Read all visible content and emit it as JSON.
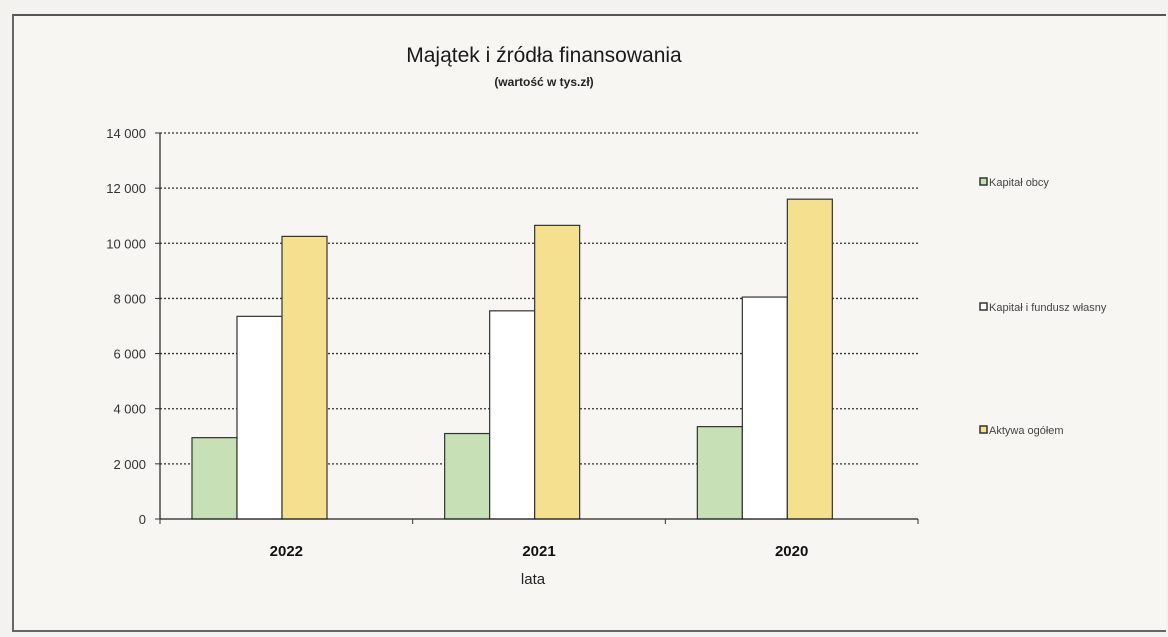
{
  "chart_data": {
    "type": "bar",
    "title": "Majątek i źródła finansowania",
    "subtitle": "(wartość w tys.zł)",
    "xlabel": "lata",
    "ylabel": "",
    "categories": [
      "2022",
      "2021",
      "2020"
    ],
    "ylim": [
      0,
      14000
    ],
    "yticks": [
      0,
      2000,
      4000,
      6000,
      8000,
      10000,
      12000,
      14000
    ],
    "ytick_labels": [
      "0",
      "2 000",
      "4 000",
      "6 000",
      "8 000",
      "10 000",
      "12 000",
      "14 000"
    ],
    "grid": true,
    "legend_position": "right",
    "series": [
      {
        "name": "Kapitał obcy",
        "values": [
          2950,
          3100,
          3350
        ],
        "color": "#c7e0b6"
      },
      {
        "name": "Kapitał i fundusz własny",
        "values": [
          7350,
          7550,
          8050
        ],
        "color": "#ffffff"
      },
      {
        "name": "Aktywa ogółem",
        "values": [
          10250,
          10650,
          11600
        ],
        "color": "#f4e08f"
      }
    ]
  }
}
